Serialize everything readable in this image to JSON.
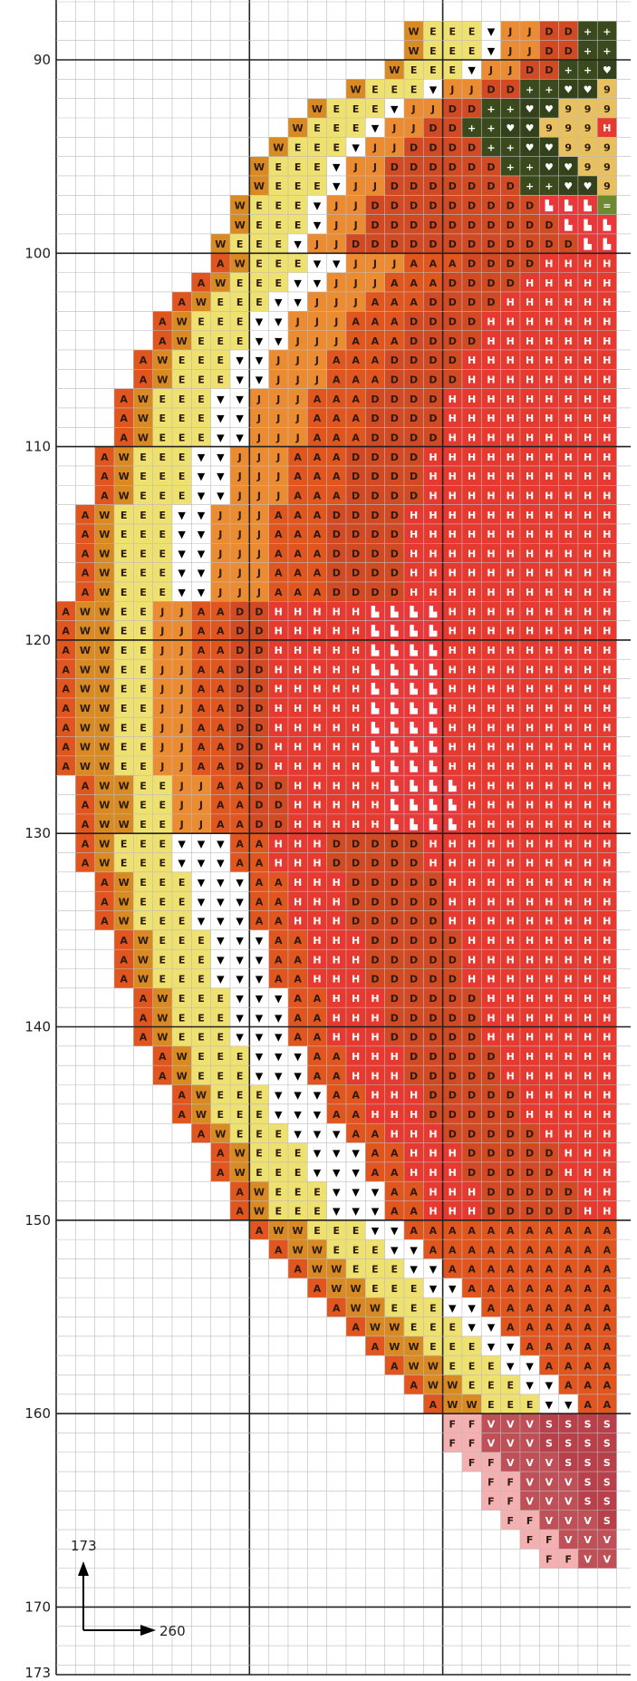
{
  "chart_data": {
    "type": "cross-stitch-pattern",
    "row_labels": [
      "90",
      "100",
      "110",
      "120",
      "130",
      "140",
      "150",
      "160",
      "170",
      "173"
    ],
    "corner_annotation": {
      "vertical_value": "173",
      "horizontal_value": "260"
    },
    "legend_symbols": {
      "A": {
        "symbol": "A",
        "color": "#e0561e"
      },
      "W": {
        "symbol": "W",
        "color": "#d98a22"
      },
      "E": {
        "symbol": "E",
        "color": "#eee170"
      },
      "V": {
        "symbol": "▼",
        "color": "#ffffff"
      },
      "J": {
        "symbol": "J",
        "color": "#ec8c32"
      },
      "D": {
        "symbol": "D",
        "color": "#d24a24"
      },
      "H": {
        "symbol": "H",
        "color": "#e63a30"
      },
      "L": {
        "symbol": "▙",
        "color": "#e8383a"
      },
      "9": {
        "symbol": "9",
        "color": "#e8c060"
      },
      "=": {
        "symbol": "=",
        "color": "#6e8a30"
      },
      "O": {
        "symbol": "◒",
        "color": "#5e7a2a"
      },
      "+": {
        "symbol": "+",
        "color": "#3a4a1c"
      },
      "K": {
        "symbol": "♥",
        "color": "#33421a"
      },
      "F": {
        "symbol": "F",
        "color": "#f4b0b0"
      },
      "v": {
        "symbol": "V",
        "color": "#c05058"
      },
      "S": {
        "symbol": "S",
        "color": "#b8404a"
      }
    }
  }
}
